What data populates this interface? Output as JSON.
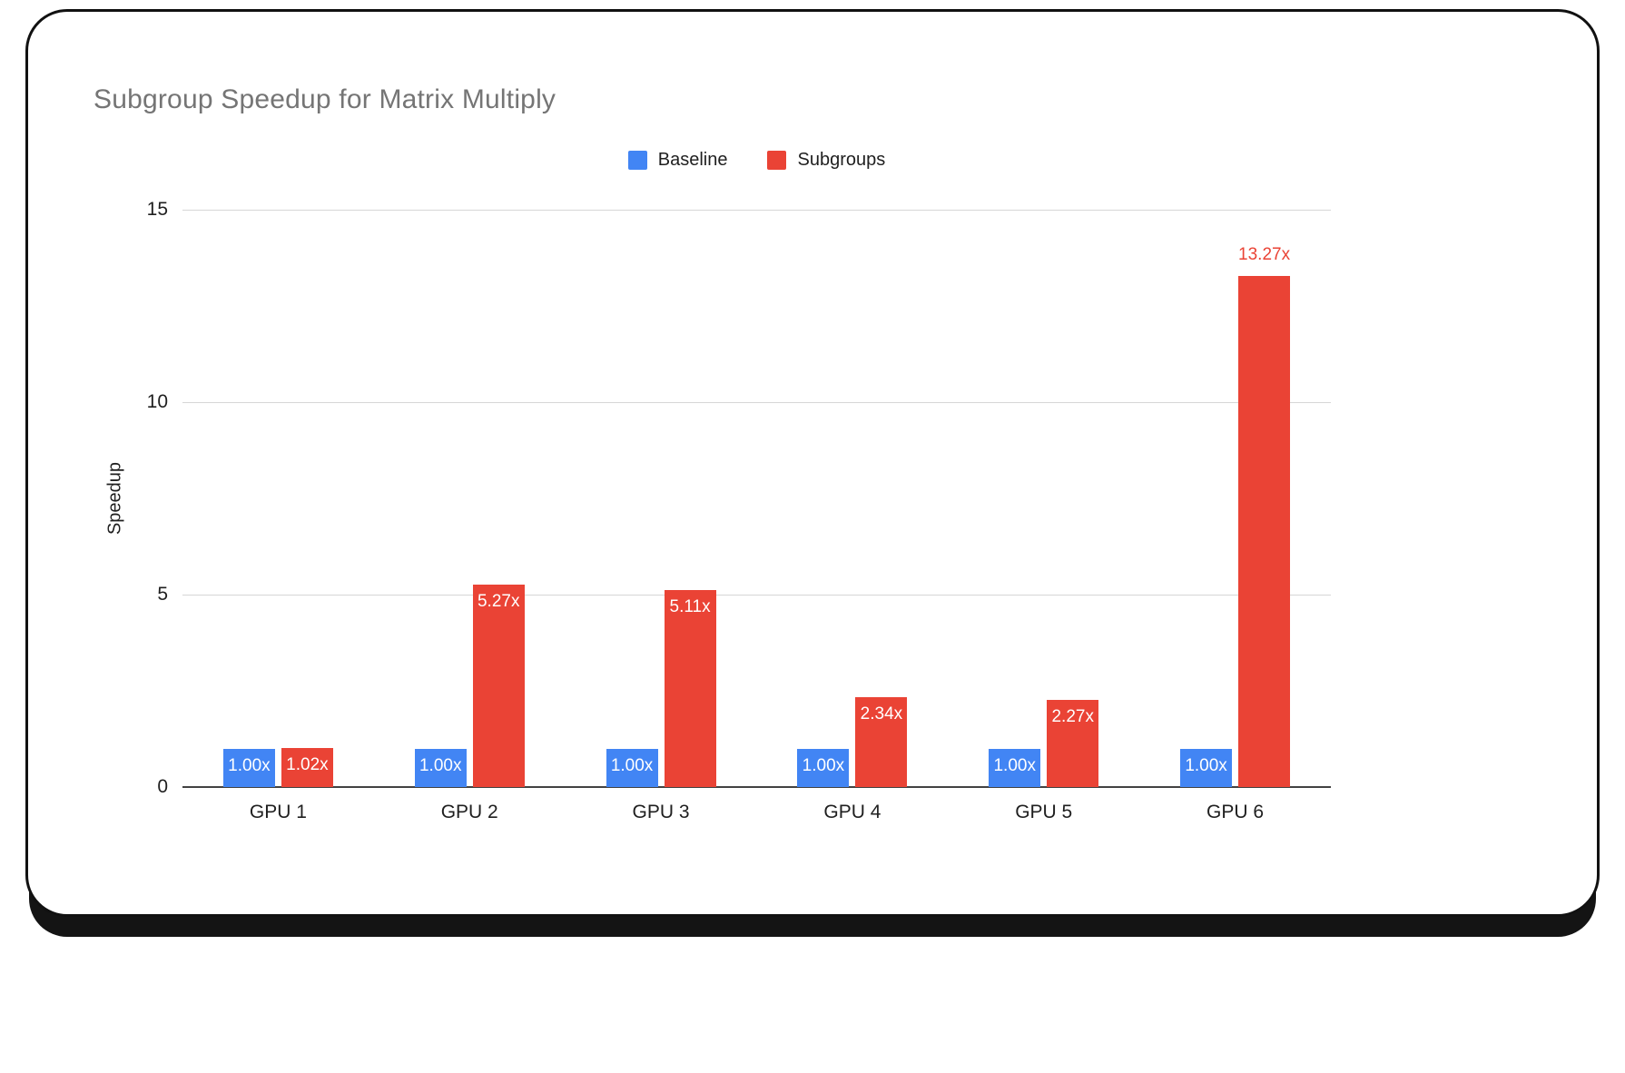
{
  "chart_data": {
    "type": "bar",
    "title": "Subgroup Speedup for Matrix Multiply",
    "xlabel": "",
    "ylabel": "Speedup",
    "categories": [
      "GPU 1",
      "GPU 2",
      "GPU 3",
      "GPU 4",
      "GPU 5",
      "GPU 6"
    ],
    "series": [
      {
        "name": "Baseline",
        "color": "#4285F4",
        "values": [
          1.0,
          1.0,
          1.0,
          1.0,
          1.0,
          1.0
        ],
        "labels": [
          "1.00x",
          "1.00x",
          "1.00x",
          "1.00x",
          "1.00x",
          "1.00x"
        ],
        "label_placements": [
          "inside",
          "inside",
          "inside",
          "inside",
          "inside",
          "inside"
        ]
      },
      {
        "name": "Subgroups",
        "color": "#EA4335",
        "values": [
          1.02,
          5.27,
          5.11,
          2.34,
          2.27,
          13.27
        ],
        "labels": [
          "1.02x",
          "5.27x",
          "5.11x",
          "2.34x",
          "2.27x",
          "13.27x"
        ],
        "label_placements": [
          "inside",
          "inside",
          "inside",
          "inside",
          "inside",
          "above"
        ]
      }
    ],
    "ylim": [
      0,
      15
    ],
    "yticks": [
      0,
      5,
      10,
      15
    ],
    "grid": true,
    "legend_position": "top",
    "label_inside_color": "#ffffff"
  },
  "frame": {
    "border_color": "#111111",
    "background_color": "#ffffff",
    "gridline_color": "#d6d6d6",
    "axis_color": "#424242",
    "title_color": "#757575"
  }
}
